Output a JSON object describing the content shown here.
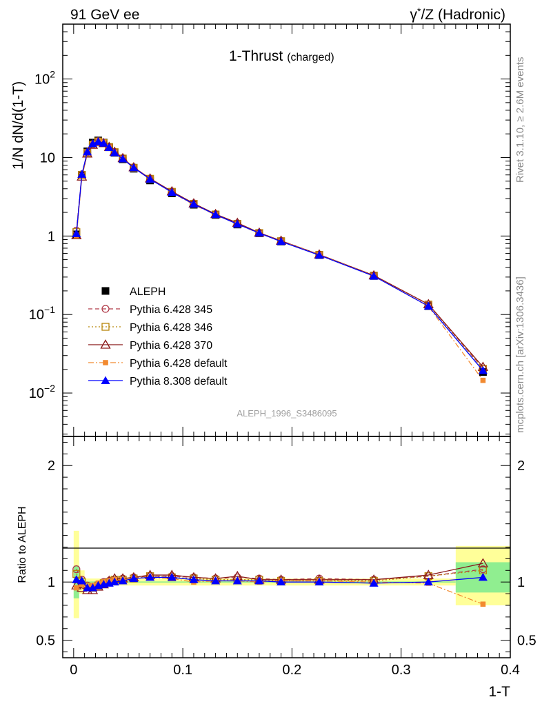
{
  "header": {
    "left": "91 GeV ee",
    "right_prefix": "γ",
    "right_sup": "*",
    "right_suffix": "/Z (Hadronic)"
  },
  "side_labels": {
    "rivet": "Rivet 3.1.10, ≥ 2.6M events",
    "mcplots": "mcplots.cern.ch [arXiv:1306.3436]"
  },
  "watermark": "ALEPH_1996_S3486095",
  "chart_data": [
    {
      "type": "line",
      "panel": "main",
      "title": "1-Thrust",
      "subtitle": "(charged)",
      "ylabel": "1/N dN/d(1-T)",
      "yscale": "log",
      "xlim": [
        -0.01,
        0.4
      ],
      "ylim": [
        0.0028,
        500
      ],
      "y_ticks": [
        {
          "value": 0.01,
          "label_base": "10",
          "label_exp": "−2"
        },
        {
          "value": 0.1,
          "label_base": "10",
          "label_exp": "−1"
        },
        {
          "value": 1,
          "label_base": "1",
          "label_exp": ""
        },
        {
          "value": 10,
          "label_base": "10",
          "label_exp": ""
        },
        {
          "value": 100,
          "label_base": "10",
          "label_exp": "2"
        }
      ],
      "legend_position": "middle-left",
      "x": [
        0.0025,
        0.0075,
        0.0125,
        0.0175,
        0.0225,
        0.0275,
        0.0325,
        0.0375,
        0.045,
        0.055,
        0.07,
        0.09,
        0.11,
        0.13,
        0.15,
        0.17,
        0.19,
        0.225,
        0.275,
        0.325,
        0.375
      ],
      "series": [
        {
          "name": "ALEPH",
          "color": "#000000",
          "marker": "square",
          "style": "none",
          "values": [
            1.05,
            6.0,
            12.0,
            15.5,
            16.5,
            15.5,
            13.5,
            11.5,
            9.5,
            7.2,
            5.1,
            3.5,
            2.5,
            1.85,
            1.4,
            1.08,
            0.85,
            0.57,
            0.31,
            0.128,
            0.0185
          ]
        },
        {
          "name": "Pythia 6.428 345",
          "color": "#b03a48",
          "marker": "circle-open",
          "style": "dashed",
          "values": [
            1.17,
            6.1,
            11.6,
            14.8,
            16.2,
            15.5,
            13.7,
            11.8,
            9.8,
            7.5,
            5.4,
            3.7,
            2.6,
            1.9,
            1.45,
            1.1,
            0.87,
            0.58,
            0.315,
            0.135,
            0.0205
          ]
        },
        {
          "name": "Pythia 6.428 346",
          "color": "#b8860b",
          "marker": "square-open",
          "style": "dotted",
          "values": [
            1.12,
            6.0,
            11.5,
            14.6,
            16.0,
            15.3,
            13.6,
            11.7,
            9.7,
            7.4,
            5.35,
            3.65,
            2.57,
            1.88,
            1.43,
            1.09,
            0.86,
            0.575,
            0.313,
            0.134,
            0.0203
          ]
        },
        {
          "name": "Pythia 6.428 370",
          "color": "#8b1a1a",
          "marker": "triangle-open",
          "style": "solid",
          "values": [
            1.02,
            5.7,
            11.2,
            14.5,
            15.8,
            15.2,
            13.6,
            11.8,
            9.8,
            7.5,
            5.4,
            3.7,
            2.6,
            1.9,
            1.47,
            1.1,
            0.87,
            0.58,
            0.315,
            0.135,
            0.0215
          ]
        },
        {
          "name": "Pythia 6.428 default",
          "color": "#f28a30",
          "marker": "square-small",
          "style": "dashdot",
          "values": [
            1.0,
            5.9,
            11.5,
            15.0,
            16.4,
            15.6,
            13.6,
            11.7,
            9.7,
            7.4,
            5.3,
            3.6,
            2.5,
            1.86,
            1.42,
            1.08,
            0.86,
            0.575,
            0.31,
            0.127,
            0.0145
          ]
        },
        {
          "name": "Pythia 8.308 default",
          "color": "#0000ff",
          "marker": "triangle",
          "style": "solid",
          "values": [
            1.07,
            6.1,
            11.8,
            15.0,
            16.0,
            15.2,
            13.4,
            11.5,
            9.6,
            7.4,
            5.3,
            3.6,
            2.55,
            1.87,
            1.42,
            1.09,
            0.85,
            0.57,
            0.308,
            0.128,
            0.0193
          ]
        }
      ]
    },
    {
      "type": "line",
      "panel": "ratio",
      "xlabel": "1-T",
      "ylabel": "Ratio to ALEPH",
      "xlim": [
        -0.01,
        0.4
      ],
      "ylim": [
        0.35,
        2.25
      ],
      "x_ticks": [
        {
          "value": 0,
          "label": "0"
        },
        {
          "value": 0.1,
          "label": "0.1"
        },
        {
          "value": 0.2,
          "label": "0.2"
        },
        {
          "value": 0.3,
          "label": "0.3"
        },
        {
          "value": 0.4,
          "label": "0.4"
        }
      ],
      "y_ticks": [
        {
          "value": 0.5,
          "label": "0.5"
        },
        {
          "value": 1,
          "label": "1"
        },
        {
          "value": 2,
          "label": "2"
        }
      ],
      "uncertainty_bands": {
        "stat_color": "#90ee90",
        "total_color": "#ffff99",
        "bins": [
          {
            "x": [
              0,
              0.005
            ],
            "stat": [
              0.86,
              1.14
            ],
            "total": [
              0.69,
              1.44
            ]
          },
          {
            "x": [
              0.005,
              0.01
            ],
            "stat": [
              0.97,
              1.03
            ],
            "total": [
              0.9,
              1.1
            ]
          },
          {
            "x": [
              0.01,
              0.35
            ],
            "stat": [
              0.995,
              1.005
            ],
            "total": [
              0.97,
              1.03
            ]
          },
          {
            "x": [
              0.35,
              0.4
            ],
            "stat": [
              0.91,
              1.17
            ],
            "total": [
              0.8,
              1.31
            ]
          }
        ]
      },
      "x": [
        0.0025,
        0.0075,
        0.0125,
        0.0175,
        0.0225,
        0.0275,
        0.0325,
        0.0375,
        0.045,
        0.055,
        0.07,
        0.09,
        0.11,
        0.13,
        0.15,
        0.17,
        0.19,
        0.225,
        0.275,
        0.325,
        0.375
      ],
      "series": [
        {
          "name": "Pythia 6.428 345",
          "color": "#b03a48",
          "marker": "circle-open",
          "style": "dashed",
          "values": [
            1.11,
            1.02,
            0.97,
            0.96,
            0.98,
            1.0,
            1.01,
            1.02,
            1.03,
            1.04,
            1.05,
            1.05,
            1.04,
            1.03,
            1.04,
            1.03,
            1.02,
            1.03,
            1.02,
            1.05,
            1.11
          ]
        },
        {
          "name": "Pythia 6.428 346",
          "color": "#b8860b",
          "marker": "square-open",
          "style": "dotted",
          "values": [
            1.07,
            1.0,
            0.96,
            0.95,
            0.97,
            0.99,
            1.0,
            1.02,
            1.02,
            1.03,
            1.05,
            1.04,
            1.03,
            1.02,
            1.02,
            1.02,
            1.01,
            1.01,
            1.01,
            1.05,
            1.1
          ]
        },
        {
          "name": "Pythia 6.428 370",
          "color": "#8b1a1a",
          "marker": "triangle-open",
          "style": "solid",
          "values": [
            0.97,
            0.95,
            0.93,
            0.93,
            0.96,
            0.98,
            1.01,
            1.03,
            1.03,
            1.04,
            1.06,
            1.06,
            1.04,
            1.03,
            1.05,
            1.02,
            1.02,
            1.02,
            1.02,
            1.06,
            1.16
          ]
        },
        {
          "name": "Pythia 6.428 default",
          "color": "#f28a30",
          "marker": "square-small",
          "style": "dashdot",
          "values": [
            0.95,
            0.98,
            0.96,
            0.97,
            0.99,
            1.0,
            1.01,
            1.02,
            1.02,
            1.03,
            1.04,
            1.03,
            1.0,
            1.01,
            1.01,
            1.0,
            1.01,
            1.01,
            1.0,
            0.99,
            0.81
          ]
        },
        {
          "name": "Pythia 8.308 default",
          "color": "#0000ff",
          "marker": "triangle",
          "style": "solid",
          "values": [
            1.02,
            1.01,
            0.95,
            0.95,
            0.97,
            0.98,
            0.99,
            1.0,
            1.01,
            1.03,
            1.04,
            1.04,
            1.02,
            1.01,
            1.01,
            1.01,
            1.0,
            1.0,
            0.99,
            1.0,
            1.04
          ]
        }
      ]
    }
  ]
}
